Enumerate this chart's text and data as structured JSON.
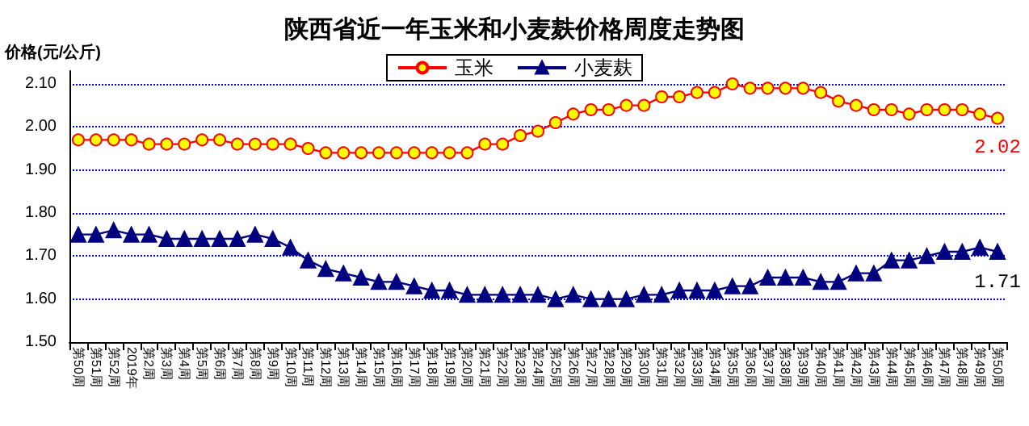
{
  "chart_data": {
    "type": "line",
    "title": "陕西省近一年玉米和小麦麸价格周度走势图",
    "ylabel": "价格(元/公斤)",
    "categories": [
      "第50周",
      "第51周",
      "第52周",
      "2019年",
      "第2周",
      "第3周",
      "第4周",
      "第5周",
      "第6周",
      "第7周",
      "第8周",
      "第9周",
      "第10周",
      "第11周",
      "第12周",
      "第13周",
      "第14周",
      "第15周",
      "第16周",
      "第17周",
      "第18周",
      "第19周",
      "第20周",
      "第21周",
      "第22周",
      "第23周",
      "第24周",
      "第25周",
      "第26周",
      "第27周",
      "第28周",
      "第29周",
      "第30周",
      "第31周",
      "第32周",
      "第33周",
      "第34周",
      "第35周",
      "第36周",
      "第37周",
      "第38周",
      "第39周",
      "第40周",
      "第41周",
      "第42周",
      "第43周",
      "第44周",
      "第45周",
      "第46周",
      "第47周",
      "第48周",
      "第49周",
      "第50周"
    ],
    "series": [
      {
        "name": "玉米",
        "color": "#ff0000",
        "marker": "circle",
        "values": [
          1.97,
          1.97,
          1.97,
          1.97,
          1.96,
          1.96,
          1.96,
          1.97,
          1.97,
          1.96,
          1.96,
          1.96,
          1.96,
          1.95,
          1.94,
          1.94,
          1.94,
          1.94,
          1.94,
          1.94,
          1.94,
          1.94,
          1.94,
          1.96,
          1.96,
          1.98,
          1.99,
          2.01,
          2.03,
          2.04,
          2.04,
          2.05,
          2.05,
          2.07,
          2.07,
          2.08,
          2.08,
          2.1,
          2.09,
          2.09,
          2.09,
          2.09,
          2.08,
          2.06,
          2.05,
          2.04,
          2.04,
          2.03,
          2.04,
          2.04,
          2.04,
          2.03,
          2.02
        ],
        "value_labels": [
          null,
          null,
          null,
          null,
          null,
          null,
          null,
          null,
          null,
          null,
          null,
          null,
          null,
          null,
          null,
          null,
          null,
          null,
          null,
          null,
          null,
          null,
          null,
          null,
          null,
          null,
          null,
          null,
          null,
          null,
          null,
          null,
          null,
          null,
          null,
          null,
          null,
          null,
          null,
          null,
          null,
          null,
          null,
          null,
          null,
          null,
          null,
          null,
          null,
          null,
          null,
          null,
          "2.02"
        ]
      },
      {
        "name": "小麦麸",
        "color": "#000080",
        "marker": "triangle",
        "values": [
          1.75,
          1.75,
          1.76,
          1.75,
          1.75,
          1.74,
          1.74,
          1.74,
          1.74,
          1.74,
          1.75,
          1.74,
          1.72,
          1.69,
          1.67,
          1.66,
          1.65,
          1.64,
          1.64,
          1.63,
          1.62,
          1.62,
          1.61,
          1.61,
          1.61,
          1.61,
          1.61,
          1.6,
          1.61,
          1.6,
          1.6,
          1.6,
          1.61,
          1.61,
          1.62,
          1.62,
          1.62,
          1.63,
          1.63,
          1.65,
          1.65,
          1.65,
          1.64,
          1.64,
          1.66,
          1.66,
          1.69,
          1.69,
          1.7,
          1.71,
          1.71,
          1.72,
          1.71
        ],
        "value_labels": [
          null,
          null,
          null,
          null,
          null,
          null,
          null,
          null,
          null,
          null,
          null,
          null,
          null,
          null,
          null,
          null,
          null,
          null,
          null,
          null,
          null,
          null,
          null,
          null,
          null,
          null,
          null,
          null,
          null,
          null,
          null,
          null,
          null,
          null,
          null,
          null,
          null,
          null,
          null,
          null,
          null,
          null,
          null,
          null,
          null,
          null,
          null,
          null,
          null,
          null,
          null,
          null,
          "1.71"
        ]
      }
    ],
    "ylim": [
      1.5,
      2.13
    ],
    "yticks": [
      {
        "value": 1.5,
        "label": "1.50"
      },
      {
        "value": 1.6,
        "label": "1.60"
      },
      {
        "value": 1.7,
        "label": "1.70"
      },
      {
        "value": 1.8,
        "label": "1.80"
      },
      {
        "value": 1.9,
        "label": "1.90"
      },
      {
        "value": 2.0,
        "label": "2.00"
      },
      {
        "value": 2.1,
        "label": "2.10"
      }
    ],
    "grid": "y",
    "legend": "top",
    "line_style": "solid"
  }
}
